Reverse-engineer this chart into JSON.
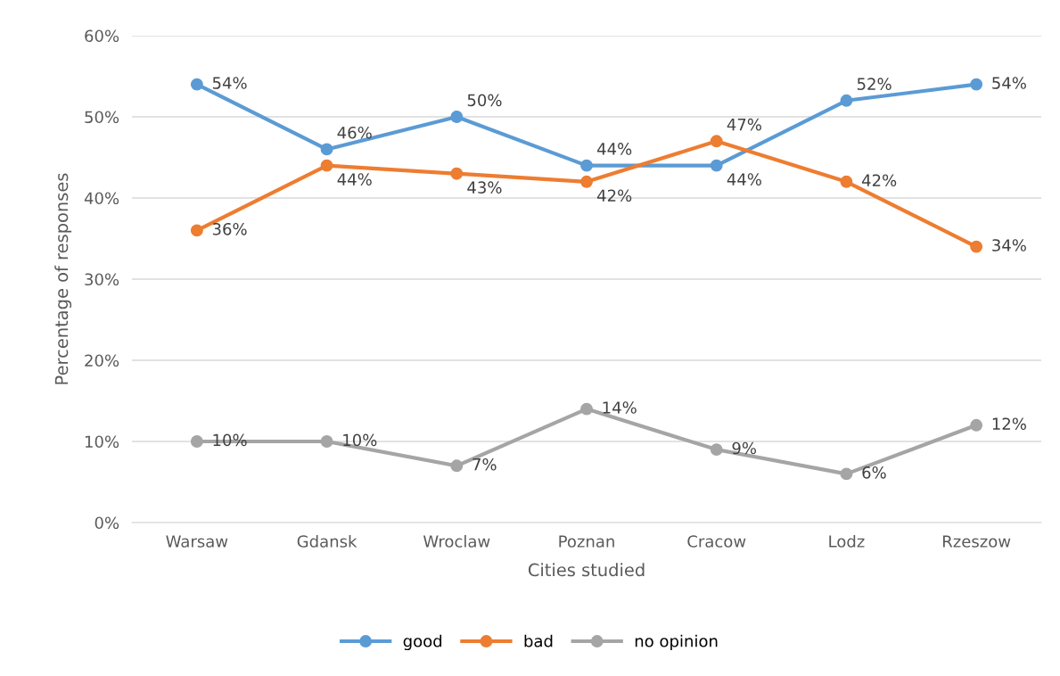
{
  "chart_data": {
    "type": "line",
    "xlabel": "Cities studied",
    "ylabel": "Percentage of responses",
    "categories": [
      "Warsaw",
      "Gdansk",
      "Wroclaw",
      "Poznan",
      "Cracow",
      "Lodz",
      "Rzeszow"
    ],
    "series": [
      {
        "name": "good",
        "color": "#5b9bd5",
        "values": [
          54,
          46,
          50,
          44,
          44,
          52,
          54
        ],
        "value_labels": [
          "54%",
          "46%",
          "50%",
          "44%",
          "44%",
          "52%",
          "54%"
        ]
      },
      {
        "name": "bad",
        "color": "#ed7d31",
        "values": [
          36,
          44,
          43,
          42,
          47,
          42,
          34
        ],
        "value_labels": [
          "36%",
          "44%",
          "43%",
          "42%",
          "47%",
          "42%",
          "34%"
        ]
      },
      {
        "name": "no opinion",
        "color": "#a5a5a5",
        "values": [
          10,
          10,
          7,
          14,
          9,
          6,
          12
        ],
        "value_labels": [
          "10%",
          "10%",
          "7%",
          "14%",
          "9%",
          "6%",
          "12%"
        ]
      }
    ],
    "ylim": [
      0,
      60
    ],
    "yticks": [
      {
        "value": 0,
        "label": "0%"
      },
      {
        "value": 10,
        "label": "10%"
      },
      {
        "value": 20,
        "label": "20%"
      },
      {
        "value": 30,
        "label": "30%"
      },
      {
        "value": 40,
        "label": "40%"
      },
      {
        "value": 50,
        "label": "50%"
      },
      {
        "value": 60,
        "label": "60%"
      }
    ],
    "grid": "y",
    "legend": "bottom",
    "marker": "circle",
    "line_style": "solid"
  }
}
